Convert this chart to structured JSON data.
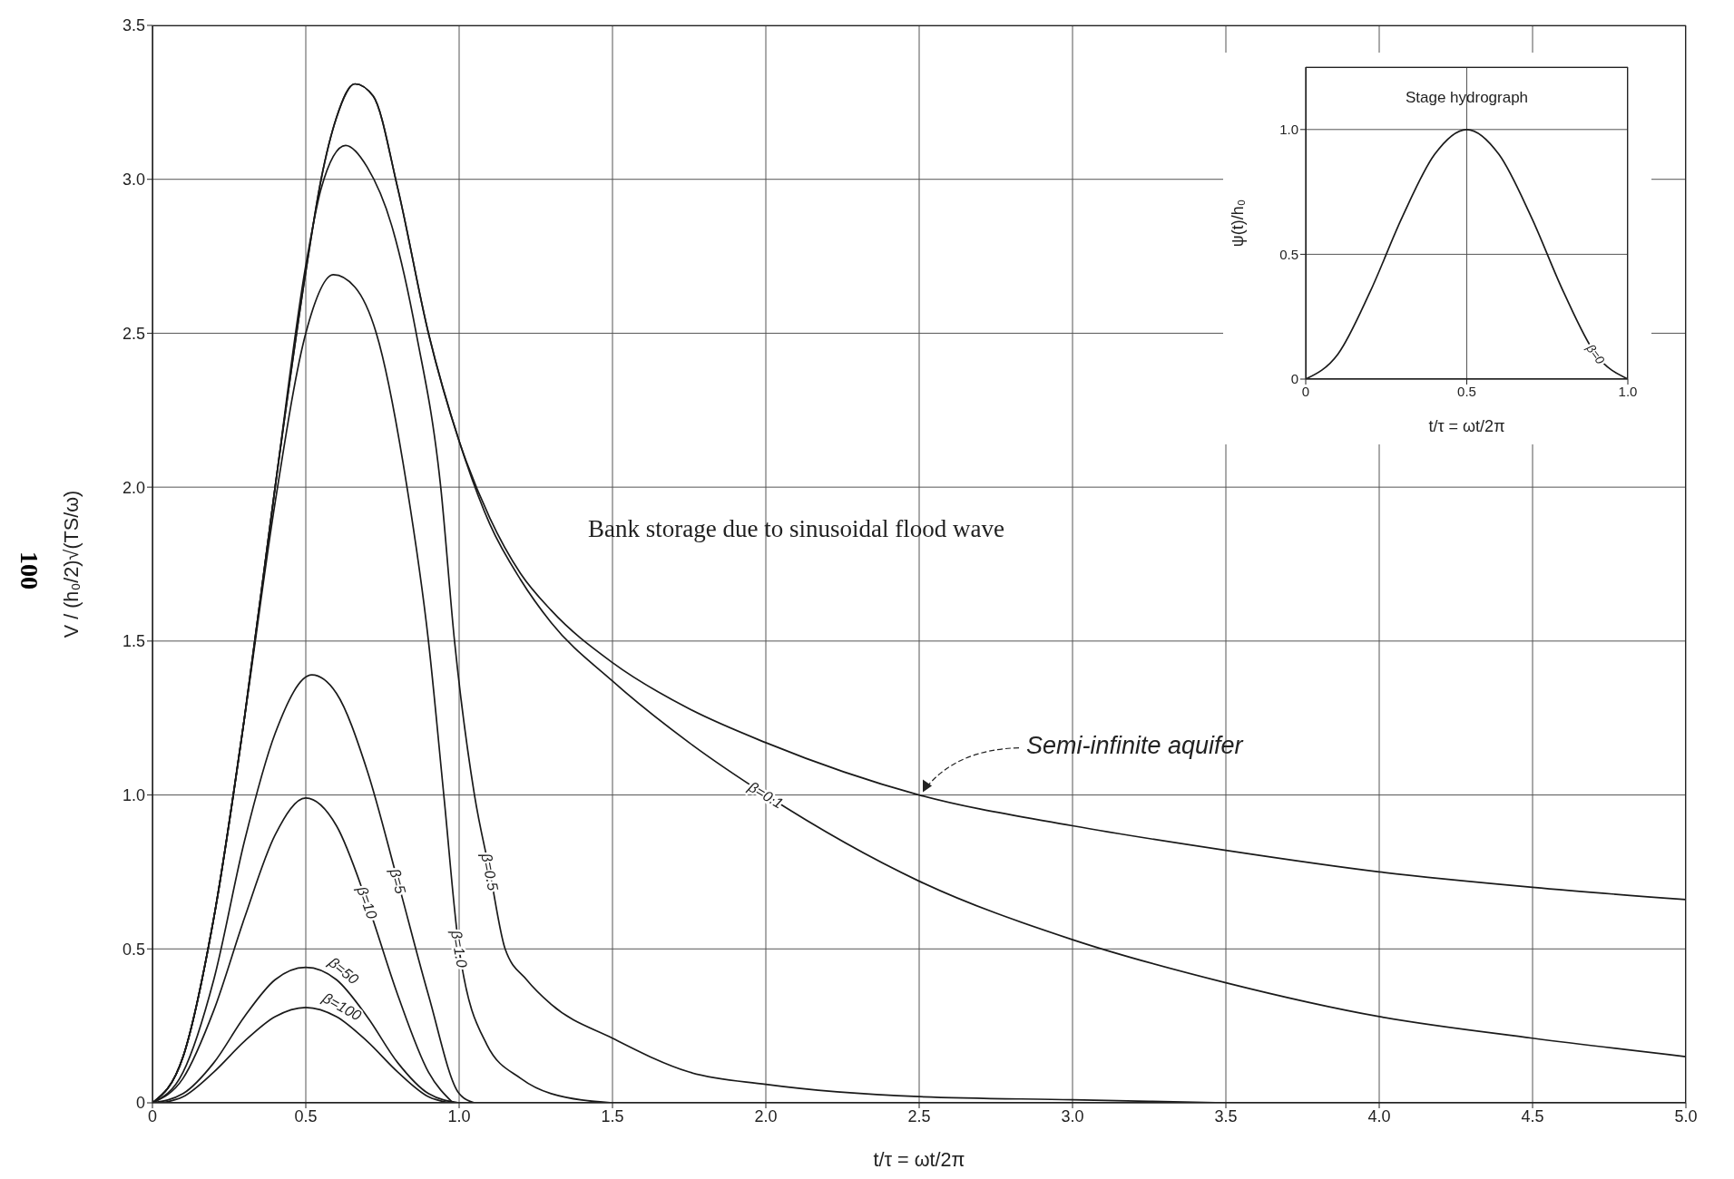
{
  "chart_data": [
    {
      "type": "line",
      "title": "Bank storage due to sinusoidal flood wave",
      "xlabel": "t/τ = ωt/2π",
      "ylabel": "V / (h₀/2)√(TS/ω)",
      "annotations": [
        "100"
      ],
      "xlim": [
        0,
        5
      ],
      "ylim": [
        0,
        3.5
      ],
      "xticks": [
        0,
        0.5,
        {
          "value": 1,
          "label": "1.0"
        },
        1.5,
        {
          "value": 2,
          "label": "2.0"
        },
        2.5,
        {
          "value": 3,
          "label": "3.0"
        },
        3.5,
        {
          "value": 4,
          "label": "4.0"
        },
        4.5,
        {
          "value": 5,
          "label": "5.0"
        }
      ],
      "yticks": [
        0,
        0.5,
        {
          "value": 1,
          "label": "1.0"
        },
        1.5,
        {
          "value": 2,
          "label": "2.0"
        },
        2.5,
        {
          "value": 3,
          "label": "3.0"
        },
        3.5
      ],
      "grid": true,
      "marker": "none",
      "line_style": "solid",
      "series": [
        {
          "name": "Semi-infinite aquifer",
          "color": "#1a1a1a",
          "x": [
            0,
            0.1,
            0.2,
            0.3,
            0.4,
            0.5,
            0.55,
            0.6,
            0.66,
            0.72,
            0.8,
            0.9,
            1.0,
            1.1,
            1.2,
            1.3,
            1.5,
            1.75,
            2.0,
            2.5,
            3.0,
            3.5,
            4.0,
            4.5,
            5.0
          ],
          "values": [
            0,
            0.15,
            0.6,
            1.25,
            2.0,
            2.7,
            3.0,
            3.2,
            3.31,
            3.27,
            2.97,
            2.5,
            2.15,
            1.9,
            1.72,
            1.6,
            1.43,
            1.28,
            1.17,
            1.0,
            0.9,
            0.82,
            0.75,
            0.7,
            0.66
          ]
        },
        {
          "name": "β=0.1",
          "color": "#1a1a1a",
          "x": [
            0,
            0.1,
            0.2,
            0.3,
            0.4,
            0.5,
            0.55,
            0.6,
            0.66,
            0.72,
            0.8,
            0.9,
            1.0,
            1.1,
            1.2,
            1.3,
            1.5,
            1.75,
            2.0,
            2.5,
            3.0,
            3.5,
            4.0,
            4.5,
            5.0
          ],
          "values": [
            0,
            0.15,
            0.6,
            1.25,
            2.0,
            2.7,
            3.0,
            3.2,
            3.31,
            3.27,
            2.97,
            2.5,
            2.15,
            1.88,
            1.7,
            1.56,
            1.37,
            1.17,
            1.0,
            0.72,
            0.53,
            0.39,
            0.28,
            0.21,
            0.15
          ]
        },
        {
          "name": "β=0.5",
          "color": "#1a1a1a",
          "x": [
            0,
            0.1,
            0.2,
            0.3,
            0.4,
            0.5,
            0.55,
            0.63,
            0.7,
            0.78,
            0.86,
            0.94,
            0.985,
            1.05,
            1.1,
            1.15,
            1.22,
            1.3,
            1.5,
            1.75,
            2.0,
            2.5,
            3.0,
            3.5
          ],
          "values": [
            0,
            0.15,
            0.6,
            1.25,
            2.0,
            2.72,
            2.97,
            3.11,
            3.04,
            2.85,
            2.5,
            2.0,
            1.5,
            1.0,
            0.75,
            0.5,
            0.4,
            0.32,
            0.21,
            0.1,
            0.06,
            0.02,
            0.01,
            0
          ]
        },
        {
          "name": "β=1.0",
          "color": "#1a1a1a",
          "x": [
            0,
            0.1,
            0.2,
            0.3,
            0.4,
            0.5,
            0.59,
            0.66,
            0.73,
            0.83,
            0.9,
            0.95,
            1.0,
            1.09,
            1.2,
            1.3,
            1.5
          ],
          "values": [
            0,
            0.15,
            0.6,
            1.25,
            1.95,
            2.5,
            2.69,
            2.65,
            2.5,
            2.0,
            1.5,
            1.0,
            0.5,
            0.19,
            0.08,
            0.03,
            0
          ]
        },
        {
          "name": "β=5",
          "color": "#1a1a1a",
          "x": [
            0,
            0.1,
            0.2,
            0.3,
            0.4,
            0.52,
            0.6,
            0.7,
            0.8,
            0.9,
            1.0,
            1.05
          ],
          "values": [
            0,
            0.1,
            0.4,
            0.85,
            1.2,
            1.39,
            1.33,
            1.08,
            0.72,
            0.35,
            0.03,
            0
          ]
        },
        {
          "name": "β=10",
          "color": "#1a1a1a",
          "x": [
            0,
            0.1,
            0.2,
            0.3,
            0.4,
            0.5,
            0.6,
            0.7,
            0.8,
            0.9,
            0.98
          ],
          "values": [
            0,
            0.08,
            0.3,
            0.6,
            0.87,
            0.99,
            0.9,
            0.65,
            0.35,
            0.1,
            0
          ]
        },
        {
          "name": "β=50",
          "color": "#1a1a1a",
          "x": [
            0,
            0.1,
            0.2,
            0.3,
            0.4,
            0.5,
            0.6,
            0.7,
            0.8,
            0.9,
            1.0
          ],
          "values": [
            0,
            0.03,
            0.13,
            0.28,
            0.4,
            0.44,
            0.4,
            0.28,
            0.13,
            0.03,
            0
          ]
        },
        {
          "name": "β=100",
          "color": "#1a1a1a",
          "x": [
            0.03,
            0.1,
            0.2,
            0.3,
            0.4,
            0.5,
            0.6,
            0.7,
            0.8,
            0.9,
            0.97
          ],
          "values": [
            0,
            0.02,
            0.1,
            0.2,
            0.28,
            0.31,
            0.28,
            0.2,
            0.1,
            0.02,
            0
          ]
        }
      ]
    },
    {
      "type": "line",
      "title": "Stage hydrograph",
      "xlabel": "t/τ = ωt/2π",
      "ylabel": "ψ(t)/h₀",
      "xlim": [
        0,
        1
      ],
      "ylim": [
        0,
        1.25
      ],
      "xticks": [
        0,
        0.5,
        {
          "value": 1,
          "label": "1.0"
        }
      ],
      "yticks": [
        0,
        0.5,
        {
          "value": 1,
          "label": "1.0"
        }
      ],
      "grid": true,
      "marker": "none",
      "line_style": "solid",
      "series": [
        {
          "name": "β=0",
          "color": "#1a1a1a",
          "x": [
            0,
            0.1,
            0.2,
            0.3,
            0.4,
            0.5,
            0.6,
            0.7,
            0.8,
            0.9,
            1.0
          ],
          "values": [
            0,
            0.1,
            0.35,
            0.65,
            0.9,
            1.0,
            0.9,
            0.65,
            0.35,
            0.1,
            0
          ]
        }
      ]
    }
  ]
}
